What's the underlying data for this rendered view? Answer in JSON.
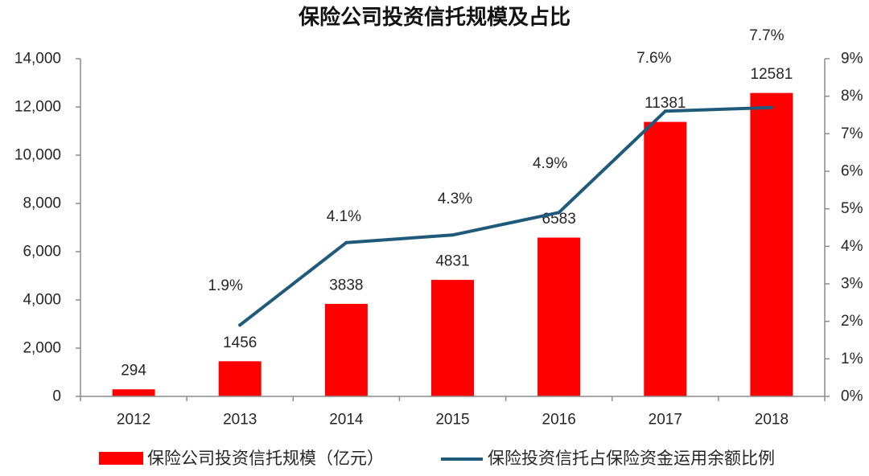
{
  "chart_data": {
    "type": "bar",
    "title": "保险公司投资信托规模及占比",
    "categories": [
      "2012",
      "2013",
      "2014",
      "2015",
      "2016",
      "2017",
      "2018"
    ],
    "series": [
      {
        "name": "保险公司投资信托规模（亿元）",
        "type": "bar",
        "y_axis": "left",
        "color": "#ff0000",
        "values": [
          294,
          1456,
          3838,
          4831,
          6583,
          11381,
          12581
        ],
        "labels": [
          "294",
          "1456",
          "3838",
          "4831",
          "6583",
          "11381",
          "12581"
        ]
      },
      {
        "name": "保险投资信托占保险资金运用余额比例",
        "type": "line",
        "y_axis": "right",
        "color": "#1f5a7a",
        "values": [
          null,
          1.9,
          4.1,
          4.3,
          4.9,
          7.6,
          7.7
        ],
        "labels": [
          null,
          "1.9%",
          "4.1%",
          "4.3%",
          "4.9%",
          "7.6%",
          "7.7%"
        ]
      }
    ],
    "y_left": {
      "min": 0,
      "max": 14000,
      "ticks": [
        0,
        2000,
        4000,
        6000,
        8000,
        10000,
        12000,
        14000
      ],
      "tick_labels": [
        "0",
        "2,000",
        "4,000",
        "6,000",
        "8,000",
        "10,000",
        "12,000",
        "14,000"
      ]
    },
    "y_right": {
      "min": 0,
      "max": 9,
      "ticks": [
        0,
        1,
        2,
        3,
        4,
        5,
        6,
        7,
        8,
        9
      ],
      "tick_labels": [
        "0%",
        "1%",
        "2%",
        "3%",
        "4%",
        "5%",
        "6%",
        "7%",
        "8%",
        "9%"
      ]
    },
    "grid": false,
    "legend": "bottom"
  }
}
